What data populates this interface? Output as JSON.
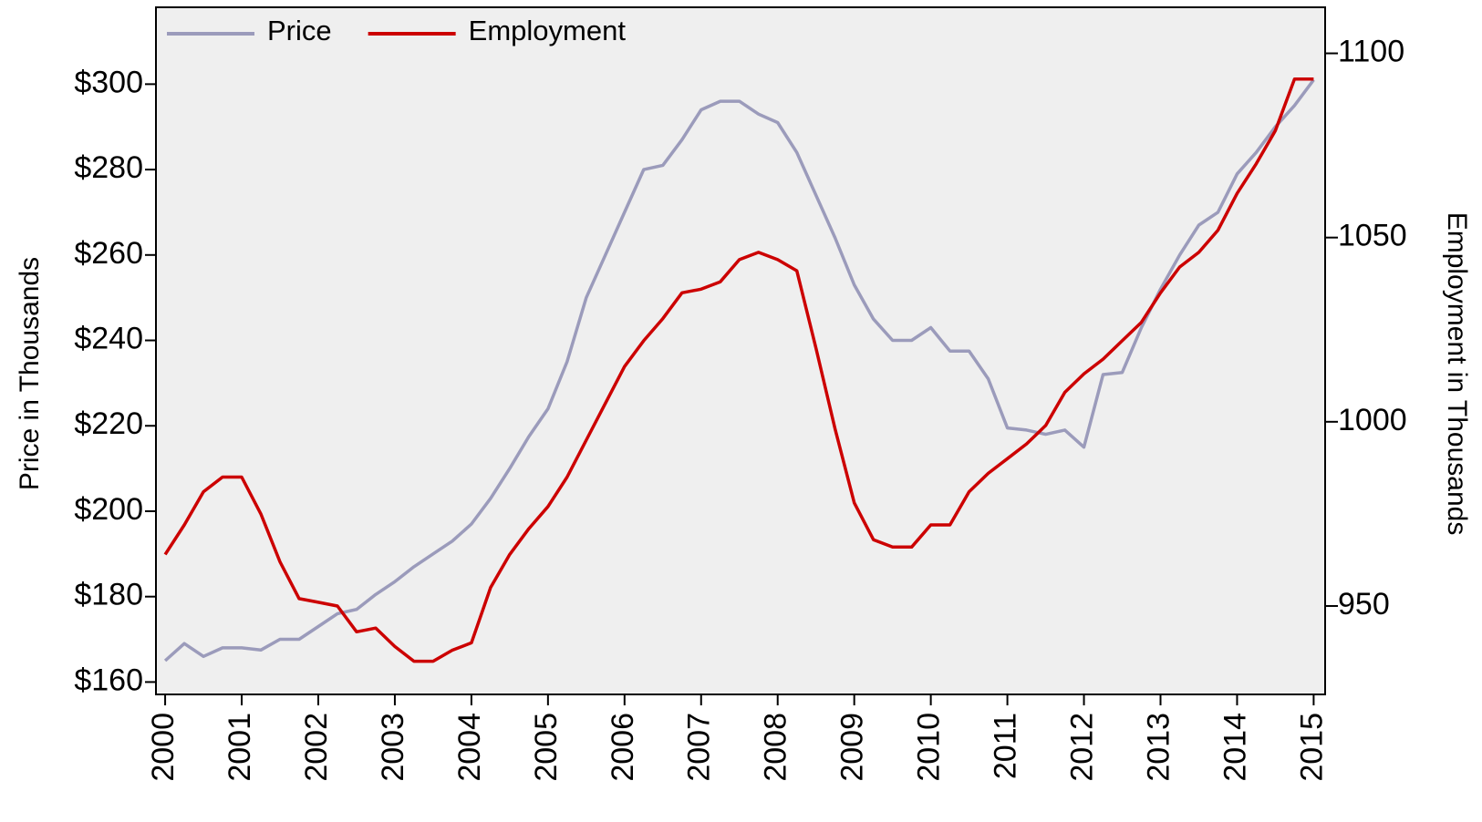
{
  "chart_data": {
    "type": "line",
    "x": [
      2000,
      2000.25,
      2000.5,
      2000.75,
      2001,
      2001.25,
      2001.5,
      2001.75,
      2002,
      2002.25,
      2002.5,
      2002.75,
      2003,
      2003.25,
      2003.5,
      2003.75,
      2004,
      2004.25,
      2004.5,
      2004.75,
      2005,
      2005.25,
      2005.5,
      2005.75,
      2006,
      2006.25,
      2006.5,
      2006.75,
      2007,
      2007.25,
      2007.5,
      2007.75,
      2008,
      2008.25,
      2008.5,
      2008.75,
      2009,
      2009.25,
      2009.5,
      2009.75,
      2010,
      2010.25,
      2010.5,
      2010.75,
      2011,
      2011.25,
      2011.5,
      2011.75,
      2012,
      2012.25,
      2012.5,
      2012.75,
      2013,
      2013.25,
      2013.5,
      2013.75,
      2014,
      2014.25,
      2014.5,
      2014.75,
      2015
    ],
    "series": [
      {
        "name": "Price",
        "color": "#9b9bbb",
        "axis": "y",
        "values": [
          165,
          169,
          166,
          168,
          168,
          167.5,
          170,
          170,
          173,
          176,
          177,
          180.5,
          183.5,
          187,
          190,
          193,
          197,
          203,
          210,
          217.5,
          224,
          235,
          250,
          260,
          270,
          280,
          281,
          287,
          294,
          296,
          296,
          293,
          291,
          284,
          274,
          264,
          253,
          245,
          240,
          240,
          243,
          237.5,
          237.5,
          231,
          219.5,
          219,
          218,
          219,
          215,
          232,
          232.5,
          243,
          252,
          260,
          267,
          270,
          279,
          284,
          290,
          295,
          301
        ]
      },
      {
        "name": "Employment",
        "color": "#cc0000",
        "axis": "y2",
        "values": [
          964,
          972,
          981,
          985,
          985,
          975,
          962,
          952,
          951,
          950,
          943,
          944,
          939,
          935,
          935,
          938,
          940,
          955,
          964,
          971,
          977,
          985,
          995,
          1005,
          1015,
          1022,
          1028,
          1035,
          1036,
          1038,
          1044,
          1046,
          1044,
          1041,
          1020,
          998,
          978,
          968,
          966,
          966,
          972,
          972,
          981,
          986,
          990,
          994,
          999,
          1008,
          1013,
          1017,
          1022,
          1027,
          1035,
          1042,
          1046,
          1052,
          1062,
          1070,
          1079,
          1093,
          1093
        ]
      }
    ],
    "ylabel": "Price in Thousands",
    "y2label": "Employment in Thousands",
    "xlim": [
      1999.88,
      2015.15
    ],
    "xticks": [
      2000,
      2001,
      2002,
      2003,
      2004,
      2005,
      2006,
      2007,
      2008,
      2009,
      2010,
      2011,
      2012,
      2013,
      2014,
      2015
    ],
    "ylim": [
      157.1,
      318
    ],
    "yticks": [
      {
        "value": 160,
        "label": "$160"
      },
      {
        "value": 180,
        "label": "$180"
      },
      {
        "value": 200,
        "label": "$200"
      },
      {
        "value": 220,
        "label": "$220"
      },
      {
        "value": 240,
        "label": "$240"
      },
      {
        "value": 260,
        "label": "$260"
      },
      {
        "value": 280,
        "label": "$280"
      },
      {
        "value": 300,
        "label": "$300"
      }
    ],
    "y2lim": [
      926,
      1112.5
    ],
    "y2ticks": [
      950,
      1000,
      1050,
      1100
    ],
    "legend": "top-left"
  }
}
